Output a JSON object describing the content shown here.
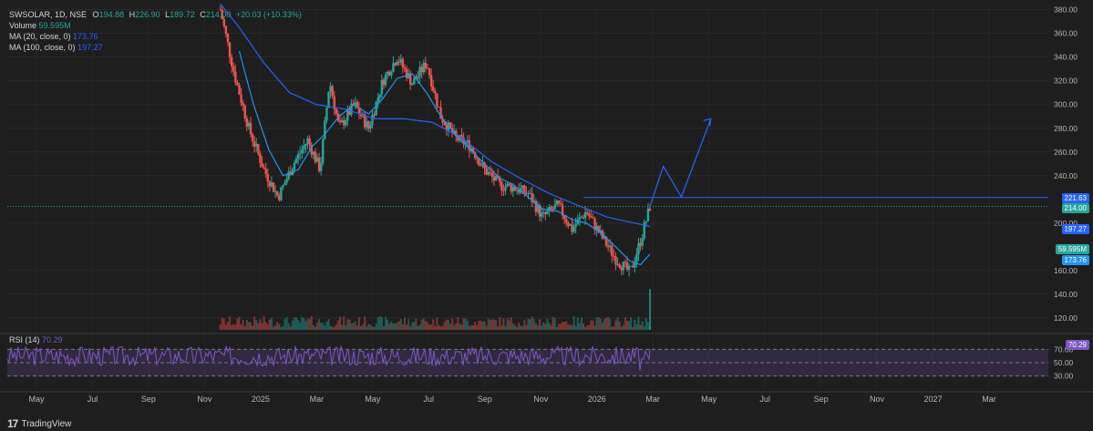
{
  "window": {
    "brand": "TradingView"
  },
  "legend": {
    "symbol": "SWSOLAR, 1D, NSE",
    "open_label": "O",
    "open": "194.88",
    "high_label": "H",
    "high": "226.90",
    "low_label": "L",
    "low": "189.72",
    "close_label": "C",
    "close": "214.00",
    "change": "+20.03 (+10.33%)",
    "volume_label": "Volume",
    "volume": "59.595M",
    "ma20_label": "MA (20, close, 0)",
    "ma20": "173.76",
    "ma100_label": "MA (100, close, 0)",
    "ma100": "197.27",
    "rsi_label": "RSI (14)",
    "rsi": "70.29"
  },
  "badges": {
    "level": "221.63",
    "close": "214.00",
    "ma100": "197.27",
    "volume": "59.595M",
    "ma20": "173.76",
    "rsi": "70.29"
  },
  "colors": {
    "background": "#1e1e1e",
    "up": "#26a69a",
    "down": "#ef5350",
    "ma20": "#2962ff",
    "ma100": "#2962ff",
    "rsi": "#7e57c2",
    "rsi_band": "#7e57c233",
    "projection": "#2962ff"
  },
  "chart_data": {
    "type": "candlestick",
    "symbol": "SWSOLAR",
    "interval": "1D",
    "exchange": "NSE",
    "ylim": [
      110,
      382
    ],
    "y_ticks": [
      380,
      360,
      340,
      320,
      300,
      280,
      260,
      240,
      200,
      160,
      140,
      120
    ],
    "x_tick_labels": [
      "May",
      "Jul",
      "Sep",
      "Nov",
      "2025",
      "Mar",
      "May",
      "Jul",
      "Sep",
      "Nov",
      "2026",
      "Mar",
      "May",
      "Jul",
      "Sep",
      "Nov",
      "2027",
      "Mar"
    ],
    "price_path": [
      [
        "2024-11-20",
        380
      ],
      [
        "2024-12-05",
        325
      ],
      [
        "2024-12-20",
        280
      ],
      [
        "2025-01-05",
        245
      ],
      [
        "2025-01-20",
        222
      ],
      [
        "2025-02-05",
        250
      ],
      [
        "2025-02-20",
        270
      ],
      [
        "2025-03-05",
        245
      ],
      [
        "2025-03-15",
        320
      ],
      [
        "2025-03-25",
        280
      ],
      [
        "2025-04-10",
        300
      ],
      [
        "2025-04-25",
        280
      ],
      [
        "2025-05-10",
        320
      ],
      [
        "2025-05-25",
        340
      ],
      [
        "2025-06-10",
        318
      ],
      [
        "2025-06-25",
        335
      ],
      [
        "2025-07-10",
        290
      ],
      [
        "2025-07-25",
        272
      ],
      [
        "2025-08-10",
        265
      ],
      [
        "2025-08-25",
        245
      ],
      [
        "2025-09-10",
        232
      ],
      [
        "2025-09-25",
        230
      ],
      [
        "2025-10-10",
        225
      ],
      [
        "2025-10-25",
        205
      ],
      [
        "2025-11-10",
        215
      ],
      [
        "2025-11-25",
        195
      ],
      [
        "2025-12-10",
        210
      ],
      [
        "2025-12-25",
        190
      ],
      [
        "2026-01-10",
        170
      ],
      [
        "2026-01-25",
        158
      ],
      [
        "2026-02-05",
        185
      ],
      [
        "2026-02-15",
        214
      ]
    ],
    "ma20_path": [
      [
        "2024-12-10",
        345
      ],
      [
        "2024-12-25",
        300
      ],
      [
        "2025-01-10",
        262
      ],
      [
        "2025-01-25",
        240
      ],
      [
        "2025-02-10",
        245
      ],
      [
        "2025-02-25",
        265
      ],
      [
        "2025-03-10",
        275
      ],
      [
        "2025-03-25",
        290
      ],
      [
        "2025-04-10",
        300
      ],
      [
        "2025-04-25",
        292
      ],
      [
        "2025-05-10",
        305
      ],
      [
        "2025-05-25",
        322
      ],
      [
        "2025-06-10",
        326
      ],
      [
        "2025-06-25",
        310
      ],
      [
        "2025-07-10",
        290
      ],
      [
        "2025-07-25",
        275
      ],
      [
        "2025-08-10",
        262
      ],
      [
        "2025-08-25",
        250
      ],
      [
        "2025-09-10",
        238
      ],
      [
        "2025-09-25",
        232
      ],
      [
        "2025-10-10",
        222
      ],
      [
        "2025-10-25",
        212
      ],
      [
        "2025-11-10",
        210
      ],
      [
        "2025-11-25",
        203
      ],
      [
        "2025-12-10",
        200
      ],
      [
        "2025-12-25",
        192
      ],
      [
        "2026-01-10",
        180
      ],
      [
        "2026-01-25",
        168
      ],
      [
        "2026-02-05",
        165
      ],
      [
        "2026-02-15",
        173.76
      ]
    ],
    "ma100_path": [
      [
        "2024-11-20",
        385
      ],
      [
        "2024-12-10",
        365
      ],
      [
        "2025-01-05",
        335
      ],
      [
        "2025-02-01",
        310
      ],
      [
        "2025-03-01",
        300
      ],
      [
        "2025-04-01",
        296
      ],
      [
        "2025-05-01",
        288
      ],
      [
        "2025-06-01",
        288
      ],
      [
        "2025-07-01",
        285
      ],
      [
        "2025-08-01",
        272
      ],
      [
        "2025-09-01",
        252
      ],
      [
        "2025-10-01",
        238
      ],
      [
        "2025-11-01",
        225
      ],
      [
        "2025-12-01",
        215
      ],
      [
        "2026-01-01",
        205
      ],
      [
        "2026-02-15",
        197.27
      ]
    ],
    "projection_path": [
      [
        "2026-02-15",
        214
      ],
      [
        "2026-03-01",
        248
      ],
      [
        "2026-03-20",
        222
      ],
      [
        "2026-04-20",
        288
      ]
    ],
    "horizontal_levels": [
      221.63
    ],
    "rsi_levels": [
      70,
      50,
      30
    ],
    "rsi_last": 70.29,
    "volume_last": "59.595M"
  }
}
